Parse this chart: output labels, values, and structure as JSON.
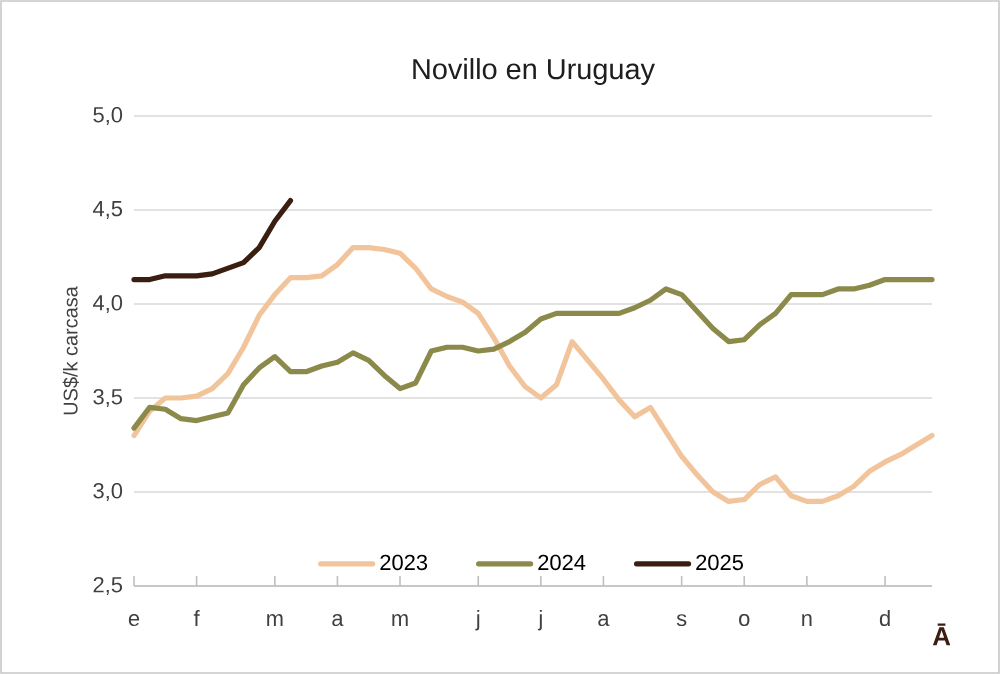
{
  "chart_data": {
    "type": "line",
    "title": "Novillo en Uruguay",
    "ylabel": "US$/k carcasa",
    "categories": [
      "e",
      null,
      null,
      null,
      "f",
      null,
      null,
      null,
      null,
      "m",
      null,
      null,
      null,
      "a",
      null,
      null,
      null,
      "m",
      null,
      null,
      null,
      null,
      "j",
      null,
      null,
      null,
      "j",
      null,
      null,
      null,
      "a",
      null,
      null,
      null,
      null,
      "s",
      null,
      null,
      null,
      "o",
      null,
      null,
      null,
      "n",
      null,
      null,
      null,
      null,
      "d",
      null,
      null,
      null
    ],
    "ylim": [
      2.5,
      5.0
    ],
    "yticks": [
      {
        "value": 2.5,
        "label": "2,5"
      },
      {
        "value": 3.0,
        "label": "3,0"
      },
      {
        "value": 3.5,
        "label": "3,5"
      },
      {
        "value": 4.0,
        "label": "4,0"
      },
      {
        "value": 4.5,
        "label": "4,5"
      },
      {
        "value": 5.0,
        "label": "5,0"
      }
    ],
    "grid": "y",
    "legend": "bottom",
    "marker": "none",
    "line_style": "solid",
    "annotations": [
      "Ā"
    ],
    "series": [
      {
        "name": "2023",
        "color": "#f2c49b",
        "values": [
          3.3,
          3.43,
          3.5,
          3.5,
          3.51,
          3.55,
          3.63,
          3.77,
          3.94,
          4.05,
          4.14,
          4.14,
          4.15,
          4.21,
          4.3,
          4.3,
          4.29,
          4.27,
          4.19,
          4.08,
          4.04,
          4.01,
          3.95,
          3.82,
          3.67,
          3.56,
          3.5,
          3.57,
          3.8,
          3.7,
          3.6,
          3.49,
          3.4,
          3.45,
          3.32,
          3.19,
          3.09,
          3.0,
          2.95,
          2.96,
          3.04,
          3.08,
          2.98,
          2.95,
          2.95,
          2.98,
          3.03,
          3.11,
          3.16,
          3.2,
          3.25,
          3.3
        ]
      },
      {
        "name": "2024",
        "color": "#8c8a4b",
        "values": [
          3.34,
          3.45,
          3.44,
          3.39,
          3.38,
          3.4,
          3.42,
          3.57,
          3.66,
          3.72,
          3.64,
          3.64,
          3.67,
          3.69,
          3.74,
          3.7,
          3.62,
          3.55,
          3.58,
          3.75,
          3.77,
          3.77,
          3.75,
          3.76,
          3.8,
          3.85,
          3.92,
          3.95,
          3.95,
          3.95,
          3.95,
          3.95,
          3.98,
          4.02,
          4.08,
          4.05,
          3.96,
          3.87,
          3.8,
          3.81,
          3.89,
          3.95,
          4.05,
          4.05,
          4.05,
          4.08,
          4.08,
          4.1,
          4.13,
          4.13,
          4.13,
          4.13
        ]
      },
      {
        "name": "2025",
        "color": "#3a1e10",
        "values": [
          4.13,
          4.13,
          4.15,
          4.15,
          4.15,
          4.16,
          4.19,
          4.22,
          4.3,
          4.44,
          4.55,
          null,
          null,
          null,
          null,
          null,
          null,
          null,
          null,
          null,
          null,
          null,
          null,
          null,
          null,
          null,
          null,
          null,
          null,
          null,
          null,
          null,
          null,
          null,
          null,
          null,
          null,
          null,
          null,
          null,
          null,
          null,
          null,
          null,
          null,
          null,
          null,
          null,
          null,
          null,
          null,
          null
        ]
      }
    ]
  }
}
